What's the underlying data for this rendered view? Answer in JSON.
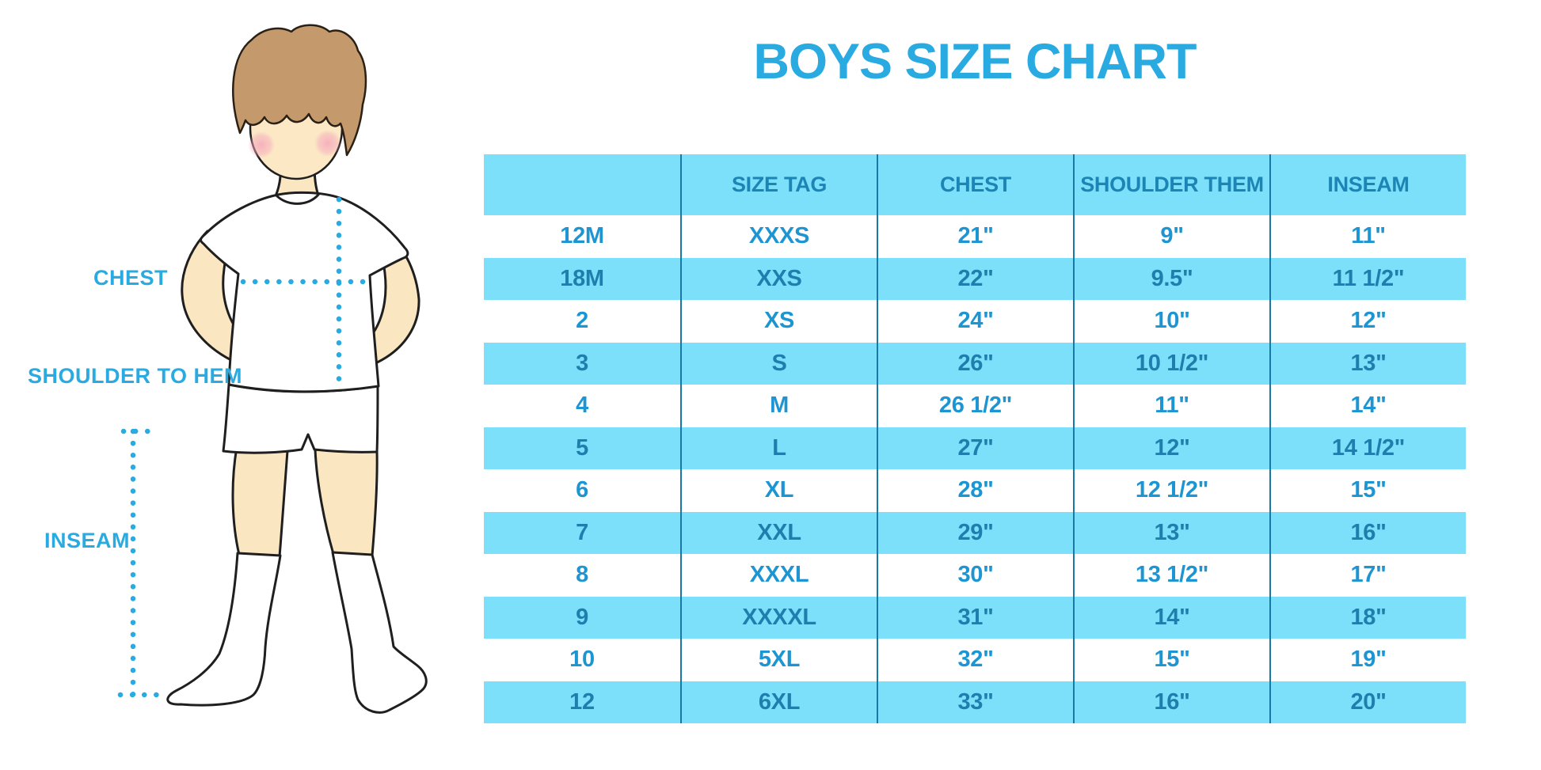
{
  "title": "BOYS SIZE CHART",
  "figure": {
    "labels": {
      "chest": "CHEST",
      "shoulder_to_hem": "SHOULDER TO HEM",
      "inseam": "INSEAM"
    }
  },
  "colors": {
    "accent_blue": "#29ABE2",
    "row_cyan": "#7CE0FA",
    "header_text": "#1D85B5",
    "cell_text_on_white": "#1D95D3",
    "cell_text_on_cyan": "#1D7FAD",
    "column_line": "#1878A8",
    "skin": "#FBE6C2",
    "hair": "#C49A6C",
    "blush": "#F5A8BC",
    "outline": "#1f1f1f"
  },
  "chart_data": {
    "type": "table",
    "title": "BOYS SIZE CHART",
    "columns": [
      "",
      "SIZE TAG",
      "CHEST",
      "SHOULDER THEM",
      "INSEAM"
    ],
    "rows": [
      [
        "12M",
        "XXXS",
        "21\"",
        "9\"",
        "11\""
      ],
      [
        "18M",
        "XXS",
        "22\"",
        "9.5\"",
        "11 1/2\""
      ],
      [
        "2",
        "XS",
        "24\"",
        "10\"",
        "12\""
      ],
      [
        "3",
        "S",
        "26\"",
        "10 1/2\"",
        "13\""
      ],
      [
        "4",
        "M",
        "26 1/2\"",
        "11\"",
        "14\""
      ],
      [
        "5",
        "L",
        "27\"",
        "12\"",
        "14 1/2\""
      ],
      [
        "6",
        "XL",
        "28\"",
        "12 1/2\"",
        "15\""
      ],
      [
        "7",
        "XXL",
        "29\"",
        "13\"",
        "16\""
      ],
      [
        "8",
        "XXXL",
        "30\"",
        "13 1/2\"",
        "17\""
      ],
      [
        "9",
        "XXXXL",
        "31\"",
        "14\"",
        "18\""
      ],
      [
        "10",
        "5XL",
        "32\"",
        "15\"",
        "19\""
      ],
      [
        "12",
        "6XL",
        "33\"",
        "16\"",
        "20\""
      ]
    ],
    "row_striping": [
      "white",
      "cyan"
    ],
    "legend_position": "none",
    "grid": "vertical-column-separators-only"
  }
}
